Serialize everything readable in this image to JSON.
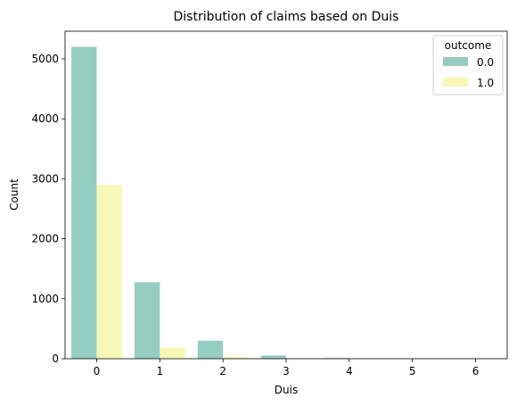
{
  "chart_data": {
    "type": "bar",
    "title": "Distribution of claims based on Duis",
    "xlabel": "Duis",
    "ylabel": "Count",
    "categories": [
      "0",
      "1",
      "2",
      "3",
      "4",
      "5",
      "6"
    ],
    "ylim": [
      0,
      5460
    ],
    "yticks": [
      0,
      1000,
      2000,
      3000,
      4000,
      5000
    ],
    "ytick_labels": [
      "0",
      "1000",
      "2000",
      "3000",
      "4000",
      "5000"
    ],
    "grid": false,
    "legend": {
      "title": "outcome",
      "placement": "top-right"
    },
    "series": [
      {
        "name": "0.0",
        "color": "#95cdc2",
        "values": [
          5200,
          1275,
          300,
          55,
          12,
          2,
          1
        ]
      },
      {
        "name": "1.0",
        "color": "#f7f7b7",
        "values": [
          2900,
          185,
          30,
          8,
          2,
          0,
          0
        ]
      }
    ]
  }
}
